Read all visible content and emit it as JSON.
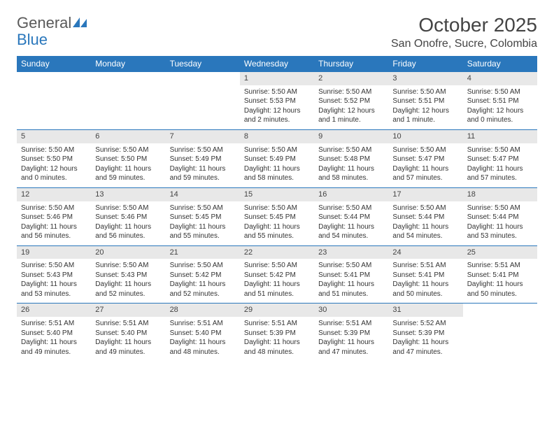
{
  "logo": {
    "text1": "General",
    "text2": "Blue",
    "color_general": "#5a5a5a",
    "color_blue": "#2a77bc"
  },
  "title": "October 2025",
  "location": "San Onofre, Sucre, Colombia",
  "header_bg": "#2a77bc",
  "header_fg": "#ffffff",
  "daynum_bg": "#e8e8e8",
  "border_color": "#2a77bc",
  "font_family": "Arial",
  "weekdays": [
    "Sunday",
    "Monday",
    "Tuesday",
    "Wednesday",
    "Thursday",
    "Friday",
    "Saturday"
  ],
  "leading_blanks": 3,
  "days": [
    {
      "n": "1",
      "sunrise": "5:50 AM",
      "sunset": "5:53 PM",
      "daylight": "12 hours and 2 minutes."
    },
    {
      "n": "2",
      "sunrise": "5:50 AM",
      "sunset": "5:52 PM",
      "daylight": "12 hours and 1 minute."
    },
    {
      "n": "3",
      "sunrise": "5:50 AM",
      "sunset": "5:51 PM",
      "daylight": "12 hours and 1 minute."
    },
    {
      "n": "4",
      "sunrise": "5:50 AM",
      "sunset": "5:51 PM",
      "daylight": "12 hours and 0 minutes."
    },
    {
      "n": "5",
      "sunrise": "5:50 AM",
      "sunset": "5:50 PM",
      "daylight": "12 hours and 0 minutes."
    },
    {
      "n": "6",
      "sunrise": "5:50 AM",
      "sunset": "5:50 PM",
      "daylight": "11 hours and 59 minutes."
    },
    {
      "n": "7",
      "sunrise": "5:50 AM",
      "sunset": "5:49 PM",
      "daylight": "11 hours and 59 minutes."
    },
    {
      "n": "8",
      "sunrise": "5:50 AM",
      "sunset": "5:49 PM",
      "daylight": "11 hours and 58 minutes."
    },
    {
      "n": "9",
      "sunrise": "5:50 AM",
      "sunset": "5:48 PM",
      "daylight": "11 hours and 58 minutes."
    },
    {
      "n": "10",
      "sunrise": "5:50 AM",
      "sunset": "5:47 PM",
      "daylight": "11 hours and 57 minutes."
    },
    {
      "n": "11",
      "sunrise": "5:50 AM",
      "sunset": "5:47 PM",
      "daylight": "11 hours and 57 minutes."
    },
    {
      "n": "12",
      "sunrise": "5:50 AM",
      "sunset": "5:46 PM",
      "daylight": "11 hours and 56 minutes."
    },
    {
      "n": "13",
      "sunrise": "5:50 AM",
      "sunset": "5:46 PM",
      "daylight": "11 hours and 56 minutes."
    },
    {
      "n": "14",
      "sunrise": "5:50 AM",
      "sunset": "5:45 PM",
      "daylight": "11 hours and 55 minutes."
    },
    {
      "n": "15",
      "sunrise": "5:50 AM",
      "sunset": "5:45 PM",
      "daylight": "11 hours and 55 minutes."
    },
    {
      "n": "16",
      "sunrise": "5:50 AM",
      "sunset": "5:44 PM",
      "daylight": "11 hours and 54 minutes."
    },
    {
      "n": "17",
      "sunrise": "5:50 AM",
      "sunset": "5:44 PM",
      "daylight": "11 hours and 54 minutes."
    },
    {
      "n": "18",
      "sunrise": "5:50 AM",
      "sunset": "5:44 PM",
      "daylight": "11 hours and 53 minutes."
    },
    {
      "n": "19",
      "sunrise": "5:50 AM",
      "sunset": "5:43 PM",
      "daylight": "11 hours and 53 minutes."
    },
    {
      "n": "20",
      "sunrise": "5:50 AM",
      "sunset": "5:43 PM",
      "daylight": "11 hours and 52 minutes."
    },
    {
      "n": "21",
      "sunrise": "5:50 AM",
      "sunset": "5:42 PM",
      "daylight": "11 hours and 52 minutes."
    },
    {
      "n": "22",
      "sunrise": "5:50 AM",
      "sunset": "5:42 PM",
      "daylight": "11 hours and 51 minutes."
    },
    {
      "n": "23",
      "sunrise": "5:50 AM",
      "sunset": "5:41 PM",
      "daylight": "11 hours and 51 minutes."
    },
    {
      "n": "24",
      "sunrise": "5:51 AM",
      "sunset": "5:41 PM",
      "daylight": "11 hours and 50 minutes."
    },
    {
      "n": "25",
      "sunrise": "5:51 AM",
      "sunset": "5:41 PM",
      "daylight": "11 hours and 50 minutes."
    },
    {
      "n": "26",
      "sunrise": "5:51 AM",
      "sunset": "5:40 PM",
      "daylight": "11 hours and 49 minutes."
    },
    {
      "n": "27",
      "sunrise": "5:51 AM",
      "sunset": "5:40 PM",
      "daylight": "11 hours and 49 minutes."
    },
    {
      "n": "28",
      "sunrise": "5:51 AM",
      "sunset": "5:40 PM",
      "daylight": "11 hours and 48 minutes."
    },
    {
      "n": "29",
      "sunrise": "5:51 AM",
      "sunset": "5:39 PM",
      "daylight": "11 hours and 48 minutes."
    },
    {
      "n": "30",
      "sunrise": "5:51 AM",
      "sunset": "5:39 PM",
      "daylight": "11 hours and 47 minutes."
    },
    {
      "n": "31",
      "sunrise": "5:52 AM",
      "sunset": "5:39 PM",
      "daylight": "11 hours and 47 minutes."
    }
  ],
  "labels": {
    "sunrise": "Sunrise: ",
    "sunset": "Sunset: ",
    "daylight": "Daylight: "
  }
}
